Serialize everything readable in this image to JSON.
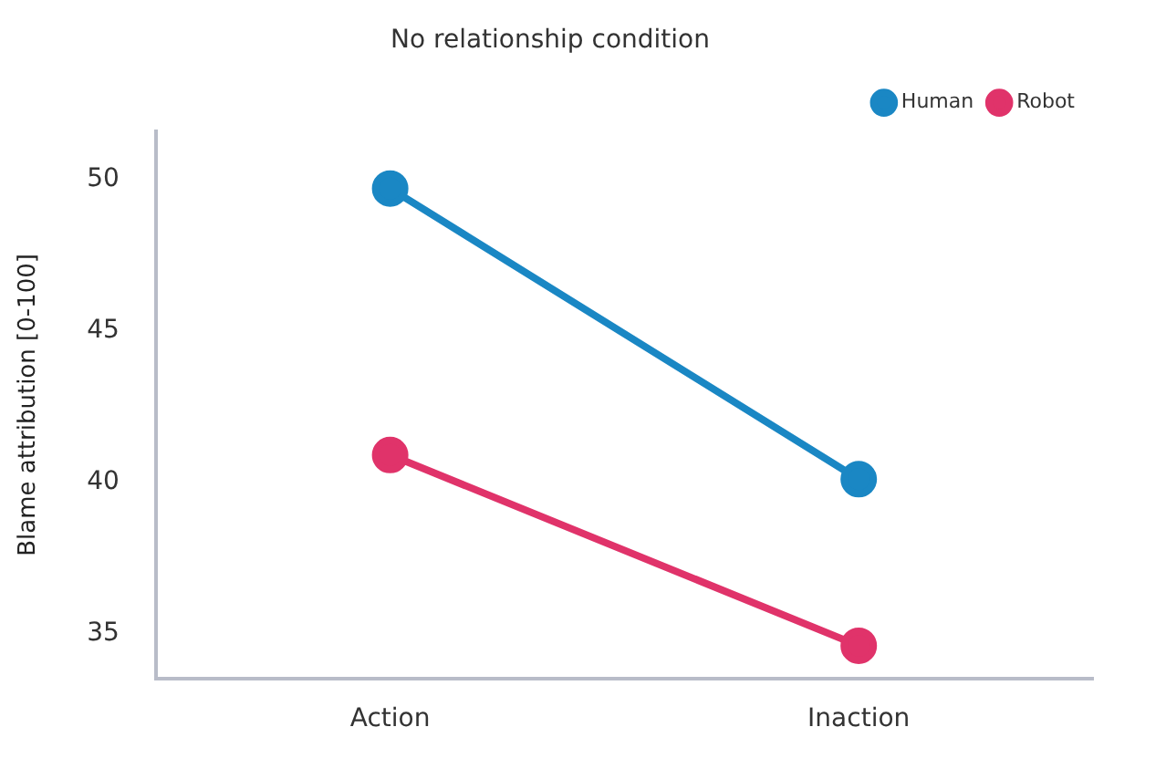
{
  "chart_data": {
    "type": "line",
    "title": "No relationship condition",
    "ylabel": "Blame attribution [0-100]",
    "categories": [
      "Action",
      "Inaction"
    ],
    "series": [
      {
        "name": "Human",
        "color": "#1a87c4",
        "values": [
          49.7,
          40.1
        ]
      },
      {
        "name": "Robot",
        "color": "#e0336a",
        "values": [
          40.9,
          34.6
        ]
      }
    ],
    "ylim": [
      33.5,
      51.6
    ],
    "yticks": [
      35,
      40,
      45,
      50
    ],
    "grid": false,
    "legend": "top right",
    "marker": "circle",
    "line_style": "solid"
  }
}
